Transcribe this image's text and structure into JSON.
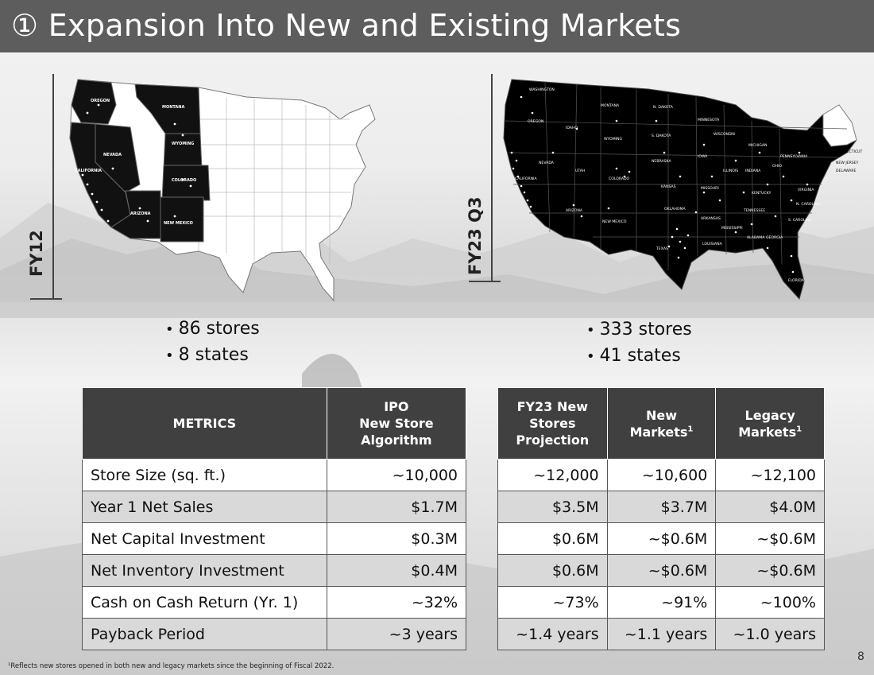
{
  "slide": {
    "title": "① Expansion Into New and Existing Markets",
    "page_number": "8",
    "footnote": "¹Reflects new stores opened in both new and legacy markets since the beginning of Fiscal 2022."
  },
  "maps": {
    "left": {
      "period_label": "FY12",
      "state_labels": [
        "OREGON",
        "MONTANA",
        "WYOMING",
        "NEVADA",
        "CALIFORNIA",
        "COLORADO",
        "ARIZONA",
        "NEW MEXICO"
      ],
      "bullets": [
        "86 stores",
        "8 states"
      ]
    },
    "right": {
      "period_label": "FY23 Q3",
      "state_labels": [
        "WASHINGTON",
        "OREGON",
        "MONTANA",
        "N. DAKOTA",
        "IDAHO",
        "MINNESOTA",
        "WYOMING",
        "S. DAKOTA",
        "WISCONSIN",
        "MICHIGAN",
        "NEVADA",
        "NEBRASKA",
        "IOWA",
        "PENNSYLVANIA",
        "UTAH",
        "ILLINOIS",
        "INDIANA",
        "OHIO",
        "CALIFORNIA",
        "COLORADO",
        "KANSAS",
        "MISSOURI",
        "KENTUCKY",
        "VIRGINIA",
        "OKLAHOMA",
        "TENNESSEE",
        "N. CAROLINA",
        "ARIZONA",
        "NEW MEXICO",
        "ARKANSAS",
        "S. CAROLINA",
        "MISSISSIPPI",
        "ALABAMA",
        "GEORGIA",
        "TEXAS",
        "LOUISIANA",
        "FLORIDA",
        "CONNECTICUT",
        "NEW JERSEY",
        "DELAWARE"
      ],
      "bullets": [
        "333 stores",
        "41 states"
      ]
    }
  },
  "colors": {
    "title_bar": "#5d5d5d",
    "table_header": "#404040",
    "filled_state": "#000000"
  },
  "table_left": {
    "headers": [
      "METRICS",
      "IPO\nNew Store\nAlgorithm"
    ],
    "rows": [
      [
        "Store Size (sq. ft.)",
        "~10,000"
      ],
      [
        "Year 1 Net Sales",
        "$1.7M"
      ],
      [
        "Net Capital Investment",
        "$0.3M"
      ],
      [
        "Net Inventory Investment",
        "$0.4M"
      ],
      [
        "Cash on Cash Return (Yr. 1)",
        "~32%"
      ],
      [
        "Payback Period",
        "~3 years"
      ]
    ]
  },
  "table_right": {
    "headers": [
      "FY23 New\nStores\nProjection",
      "New\nMarkets",
      "Legacy\nMarkets"
    ],
    "header_superscripts": [
      "",
      "1",
      "1"
    ],
    "rows": [
      [
        "~12,000",
        "~10,600",
        "~12,100"
      ],
      [
        "$3.5M",
        "$3.7M",
        "$4.0M"
      ],
      [
        "$0.6M",
        "~$0.6M",
        "~$0.6M"
      ],
      [
        "$0.6M",
        "~$0.6M",
        "~$0.6M"
      ],
      [
        "~73%",
        "~91%",
        "~100%"
      ],
      [
        "~1.4 years",
        "~1.1 years",
        "~1.0 years"
      ]
    ]
  }
}
